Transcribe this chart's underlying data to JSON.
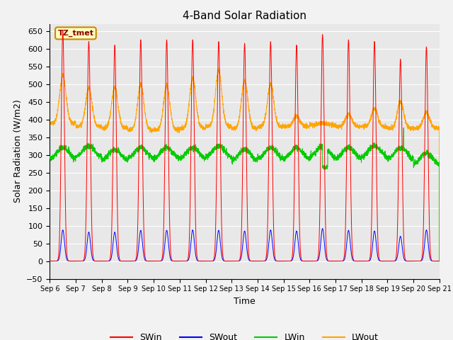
{
  "title": "4-Band Solar Radiation",
  "ylabel": "Solar Radiation (W/m2)",
  "xlabel": "Time",
  "annotation": "TZ_tmet",
  "ylim": [
    -50,
    670
  ],
  "yticks": [
    -50,
    0,
    50,
    100,
    150,
    200,
    250,
    300,
    350,
    400,
    450,
    500,
    550,
    600,
    650
  ],
  "x_labels": [
    "Sep 6",
    "Sep 7",
    "Sep 8",
    "Sep 9",
    "Sep 10",
    "Sep 11",
    "Sep 12",
    "Sep 13",
    "Sep 14",
    "Sep 15",
    "Sep 16",
    "Sep 17",
    "Sep 18",
    "Sep 19",
    "Sep 20",
    "Sep 21"
  ],
  "colors": {
    "SWin": "#FF0000",
    "SWout": "#0000FF",
    "LWin": "#00CC00",
    "LWout": "#FFA500"
  },
  "legend_entries": [
    "SWin",
    "SWout",
    "LWin",
    "LWout"
  ],
  "plot_bg": "#E8E8E8",
  "fig_bg": "#F2F2F2",
  "title_fontsize": 11,
  "axis_label_fontsize": 9,
  "tick_fontsize": 8,
  "sw_peaks": [
    650,
    620,
    610,
    625,
    625,
    625,
    620,
    615,
    620,
    610,
    640,
    625,
    620,
    570,
    605
  ],
  "sw_out_peaks": [
    88,
    82,
    82,
    87,
    87,
    88,
    87,
    85,
    88,
    85,
    92,
    87,
    85,
    70,
    88
  ],
  "lw_in_base": [
    305,
    310,
    300,
    305,
    305,
    305,
    310,
    300,
    305,
    305,
    310,
    305,
    310,
    305,
    290
  ],
  "lw_out_base": [
    390,
    380,
    375,
    370,
    370,
    375,
    380,
    375,
    380,
    380,
    385,
    380,
    380,
    375,
    375
  ],
  "lw_out_peaks": [
    525,
    490,
    490,
    500,
    495,
    515,
    540,
    510,
    500,
    410,
    390,
    415,
    430,
    450,
    420
  ]
}
